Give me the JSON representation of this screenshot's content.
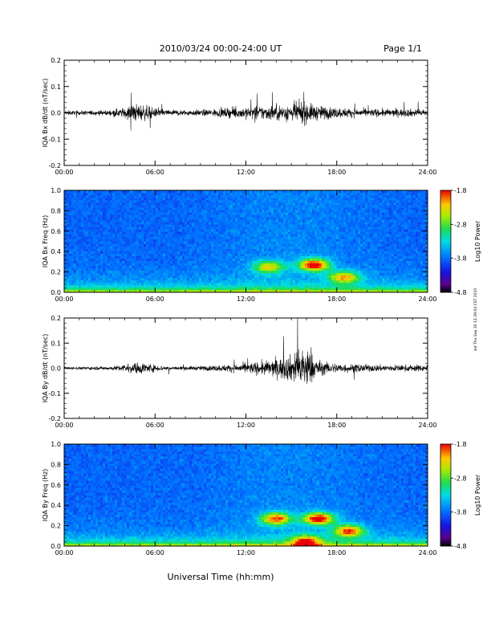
{
  "header": {
    "title": "2010/03/24  00:00-24:00 UT",
    "page": "Page 1/1"
  },
  "stamp": "ast Thu Sep 30 11:39:04 CST 2010",
  "xlabel": "Universal Time (hh:mm)",
  "chart_data": [
    {
      "id": "bx-dbdt",
      "type": "line",
      "title": "",
      "ylabel": "IQA Bx dB/dt (nT/sec)",
      "xlim": [
        0,
        24
      ],
      "xticks": [
        "00:00",
        "06:00",
        "12:00",
        "18:00",
        "24:00"
      ],
      "ylim": [
        -0.2,
        0.2
      ],
      "yticks": [
        "-0.2",
        "-0.1",
        "0.0",
        "0.1",
        "0.2"
      ],
      "series": [
        {
          "x": [
            0,
            1,
            2,
            3,
            4,
            4.5,
            5,
            5.5,
            6,
            7,
            8,
            9,
            10,
            11,
            12,
            13,
            14,
            15,
            15.5,
            16,
            16.5,
            17,
            18,
            19,
            20,
            21,
            22,
            23,
            24
          ],
          "amplitude": [
            0.012,
            0.012,
            0.014,
            0.015,
            0.03,
            0.05,
            0.05,
            0.04,
            0.025,
            0.018,
            0.016,
            0.018,
            0.022,
            0.028,
            0.035,
            0.04,
            0.045,
            0.05,
            0.065,
            0.06,
            0.045,
            0.04,
            0.03,
            0.025,
            0.022,
            0.022,
            0.022,
            0.022,
            0.022
          ]
        }
      ]
    },
    {
      "id": "bx-spec",
      "type": "heatmap",
      "title": "",
      "ylabel": "IQA Bx Freq (Hz)",
      "xlim": [
        0,
        24
      ],
      "xticks": [
        "00:00",
        "06:00",
        "12:00",
        "18:00",
        "24:00"
      ],
      "ylim": [
        0,
        1.0
      ],
      "yticks": [
        "0.0",
        "0.2",
        "0.4",
        "0.6",
        "0.8",
        "1.0"
      ],
      "colorbar": {
        "label": "Log10 Power",
        "range": [
          -4.8,
          -1.8
        ],
        "ticks": [
          "-1.8",
          "-2.8",
          "-3.8",
          "-4.8"
        ]
      },
      "events": [
        {
          "t": 13.5,
          "f": 0.25,
          "strength": 0.45
        },
        {
          "t": 16.5,
          "f": 0.27,
          "strength": 0.7
        },
        {
          "t": 18.5,
          "f": 0.15,
          "strength": 0.5
        }
      ]
    },
    {
      "id": "by-dbdt",
      "type": "line",
      "title": "",
      "ylabel": "IQA By dB/dt (nT/sec)",
      "xlim": [
        0,
        24
      ],
      "xticks": [
        "00:00",
        "06:00",
        "12:00",
        "18:00",
        "24:00"
      ],
      "ylim": [
        -0.2,
        0.2
      ],
      "yticks": [
        "-0.2",
        "-0.1",
        "0.0",
        "0.1",
        "0.2"
      ],
      "series": [
        {
          "x": [
            0,
            1,
            2,
            3,
            4,
            4.5,
            5,
            5.5,
            6,
            7,
            8,
            9,
            10,
            11,
            12,
            13,
            14,
            15,
            15.5,
            16,
            16.5,
            17,
            18,
            19,
            20,
            21,
            22,
            23,
            24
          ],
          "amplitude": [
            0.008,
            0.008,
            0.01,
            0.01,
            0.022,
            0.03,
            0.035,
            0.03,
            0.02,
            0.012,
            0.012,
            0.013,
            0.018,
            0.022,
            0.03,
            0.04,
            0.055,
            0.08,
            0.12,
            0.13,
            0.07,
            0.04,
            0.03,
            0.025,
            0.022,
            0.02,
            0.02,
            0.02,
            0.02
          ]
        }
      ]
    },
    {
      "id": "by-spec",
      "type": "heatmap",
      "title": "",
      "ylabel": "IQA By Freq (Hz)",
      "xlim": [
        0,
        24
      ],
      "xticks": [
        "00:00",
        "06:00",
        "12:00",
        "18:00",
        "24:00"
      ],
      "ylim": [
        0,
        1.0
      ],
      "yticks": [
        "0.0",
        "0.2",
        "0.4",
        "0.6",
        "0.8",
        "1.0"
      ],
      "colorbar": {
        "label": "Log10 Power",
        "range": [
          -4.8,
          -1.8
        ],
        "ticks": [
          "-1.8",
          "-2.8",
          "-3.8",
          "-4.8"
        ]
      },
      "events": [
        {
          "t": 14.0,
          "f": 0.27,
          "strength": 0.6
        },
        {
          "t": 16.8,
          "f": 0.27,
          "strength": 0.7
        },
        {
          "t": 18.8,
          "f": 0.15,
          "strength": 0.6
        },
        {
          "t": 16.0,
          "f": 0.05,
          "strength": 0.5
        }
      ]
    }
  ]
}
